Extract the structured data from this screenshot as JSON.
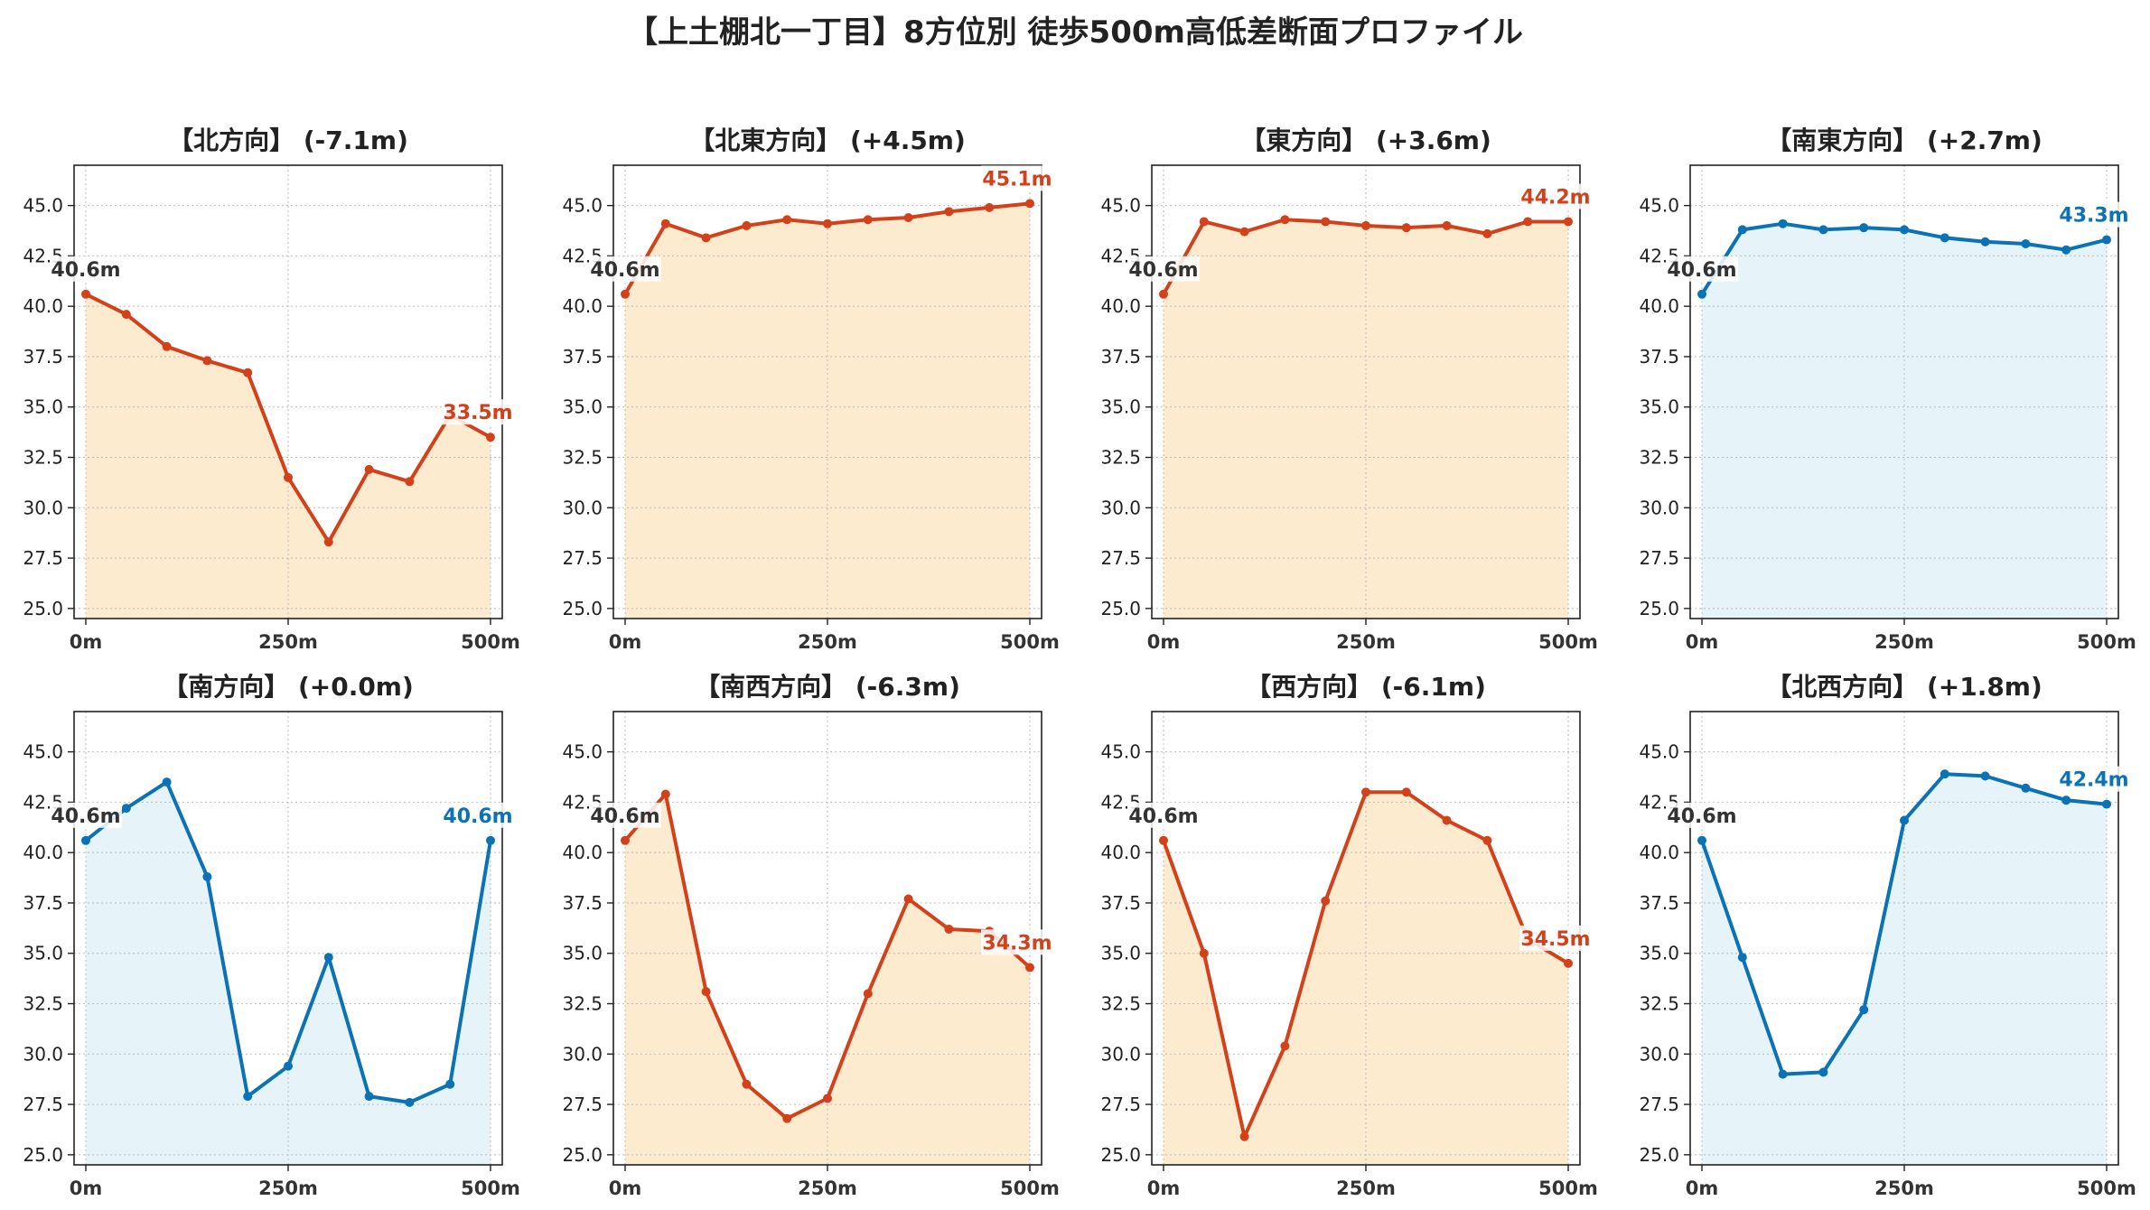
{
  "title": "【上土棚北一丁目】8方位別 徒歩500m高低差断面プロファイル",
  "colors": {
    "up": "#d3411b",
    "down": "#0a72b5",
    "fill_up": "#fdebd0",
    "fill_down": "#e6f4fa",
    "start_label": "#333333"
  },
  "chart_data": [
    {
      "type": "area",
      "title": "【北方向】 (-7.1m)",
      "trend": "up",
      "x": [
        0,
        50,
        100,
        150,
        200,
        250,
        300,
        350,
        400,
        450,
        500
      ],
      "y": [
        40.6,
        39.6,
        38.0,
        37.3,
        36.7,
        31.5,
        28.3,
        31.9,
        31.3,
        34.6,
        33.5
      ],
      "start_label": "40.6m",
      "end_label": "33.5m",
      "xticks": [
        "0m",
        "250m",
        "500m"
      ],
      "yticks": [
        "25.0",
        "27.5",
        "30.0",
        "32.5",
        "35.0",
        "37.5",
        "40.0",
        "42.5",
        "45.0"
      ],
      "ylim": [
        24.5,
        47
      ],
      "grid": true
    },
    {
      "type": "area",
      "title": "【北東方向】 (+4.5m)",
      "trend": "up",
      "x": [
        0,
        50,
        100,
        150,
        200,
        250,
        300,
        350,
        400,
        450,
        500
      ],
      "y": [
        40.6,
        44.1,
        43.4,
        44.0,
        44.3,
        44.1,
        44.3,
        44.4,
        44.7,
        44.9,
        45.1
      ],
      "start_label": "40.6m",
      "end_label": "45.1m",
      "xticks": [
        "0m",
        "250m",
        "500m"
      ],
      "yticks": [
        "25.0",
        "27.5",
        "30.0",
        "32.5",
        "35.0",
        "37.5",
        "40.0",
        "42.5",
        "45.0"
      ],
      "ylim": [
        24.5,
        47
      ],
      "grid": true
    },
    {
      "type": "area",
      "title": "【東方向】 (+3.6m)",
      "trend": "up",
      "x": [
        0,
        50,
        100,
        150,
        200,
        250,
        300,
        350,
        400,
        450,
        500
      ],
      "y": [
        40.6,
        44.2,
        43.7,
        44.3,
        44.2,
        44.0,
        43.9,
        44.0,
        43.6,
        44.2,
        44.2
      ],
      "start_label": "40.6m",
      "end_label": "44.2m",
      "xticks": [
        "0m",
        "250m",
        "500m"
      ],
      "yticks": [
        "25.0",
        "27.5",
        "30.0",
        "32.5",
        "35.0",
        "37.5",
        "40.0",
        "42.5",
        "45.0"
      ],
      "ylim": [
        24.5,
        47
      ],
      "grid": true
    },
    {
      "type": "area",
      "title": "【南東方向】 (+2.7m)",
      "trend": "down",
      "x": [
        0,
        50,
        100,
        150,
        200,
        250,
        300,
        350,
        400,
        450,
        500
      ],
      "y": [
        40.6,
        43.8,
        44.1,
        43.8,
        43.9,
        43.8,
        43.4,
        43.2,
        43.1,
        42.8,
        43.3
      ],
      "start_label": "40.6m",
      "end_label": "43.3m",
      "xticks": [
        "0m",
        "250m",
        "500m"
      ],
      "yticks": [
        "25.0",
        "27.5",
        "30.0",
        "32.5",
        "35.0",
        "37.5",
        "40.0",
        "42.5",
        "45.0"
      ],
      "ylim": [
        24.5,
        47
      ],
      "grid": true
    },
    {
      "type": "area",
      "title": "【南方向】 (+0.0m)",
      "trend": "down",
      "x": [
        0,
        50,
        100,
        150,
        200,
        250,
        300,
        350,
        400,
        450,
        500
      ],
      "y": [
        40.6,
        42.2,
        43.5,
        38.8,
        27.9,
        29.4,
        34.8,
        27.9,
        27.6,
        28.5,
        40.6
      ],
      "start_label": "40.6m",
      "end_label": "40.6m",
      "xticks": [
        "0m",
        "250m",
        "500m"
      ],
      "yticks": [
        "25.0",
        "27.5",
        "30.0",
        "32.5",
        "35.0",
        "37.5",
        "40.0",
        "42.5",
        "45.0"
      ],
      "ylim": [
        24.5,
        47
      ],
      "grid": true
    },
    {
      "type": "area",
      "title": "【南西方向】 (-6.3m)",
      "trend": "up",
      "x": [
        0,
        50,
        100,
        150,
        200,
        250,
        300,
        350,
        400,
        450,
        500
      ],
      "y": [
        40.6,
        42.9,
        33.1,
        28.5,
        26.8,
        27.8,
        33.0,
        37.7,
        36.2,
        36.1,
        34.3
      ],
      "start_label": "40.6m",
      "end_label": "34.3m",
      "xticks": [
        "0m",
        "250m",
        "500m"
      ],
      "yticks": [
        "25.0",
        "27.5",
        "30.0",
        "32.5",
        "35.0",
        "37.5",
        "40.0",
        "42.5",
        "45.0"
      ],
      "ylim": [
        24.5,
        47
      ],
      "grid": true
    },
    {
      "type": "area",
      "title": "【西方向】 (-6.1m)",
      "trend": "up",
      "x": [
        0,
        50,
        100,
        150,
        200,
        250,
        300,
        350,
        400,
        450,
        500
      ],
      "y": [
        40.6,
        35.0,
        25.9,
        30.4,
        37.6,
        43.0,
        43.0,
        41.6,
        40.6,
        35.7,
        34.5
      ],
      "start_label": "40.6m",
      "end_label": "34.5m",
      "xticks": [
        "0m",
        "250m",
        "500m"
      ],
      "yticks": [
        "25.0",
        "27.5",
        "30.0",
        "32.5",
        "35.0",
        "37.5",
        "40.0",
        "42.5",
        "45.0"
      ],
      "ylim": [
        24.5,
        47
      ],
      "grid": true
    },
    {
      "type": "area",
      "title": "【北西方向】 (+1.8m)",
      "trend": "down",
      "x": [
        0,
        50,
        100,
        150,
        200,
        250,
        300,
        350,
        400,
        450,
        500
      ],
      "y": [
        40.6,
        34.8,
        29.0,
        29.1,
        32.2,
        41.6,
        43.9,
        43.8,
        43.2,
        42.6,
        42.4
      ],
      "start_label": "40.6m",
      "end_label": "42.4m",
      "xticks": [
        "0m",
        "250m",
        "500m"
      ],
      "yticks": [
        "25.0",
        "27.5",
        "30.0",
        "32.5",
        "35.0",
        "37.5",
        "40.0",
        "42.5",
        "45.0"
      ],
      "ylim": [
        24.5,
        47
      ],
      "grid": true
    }
  ]
}
